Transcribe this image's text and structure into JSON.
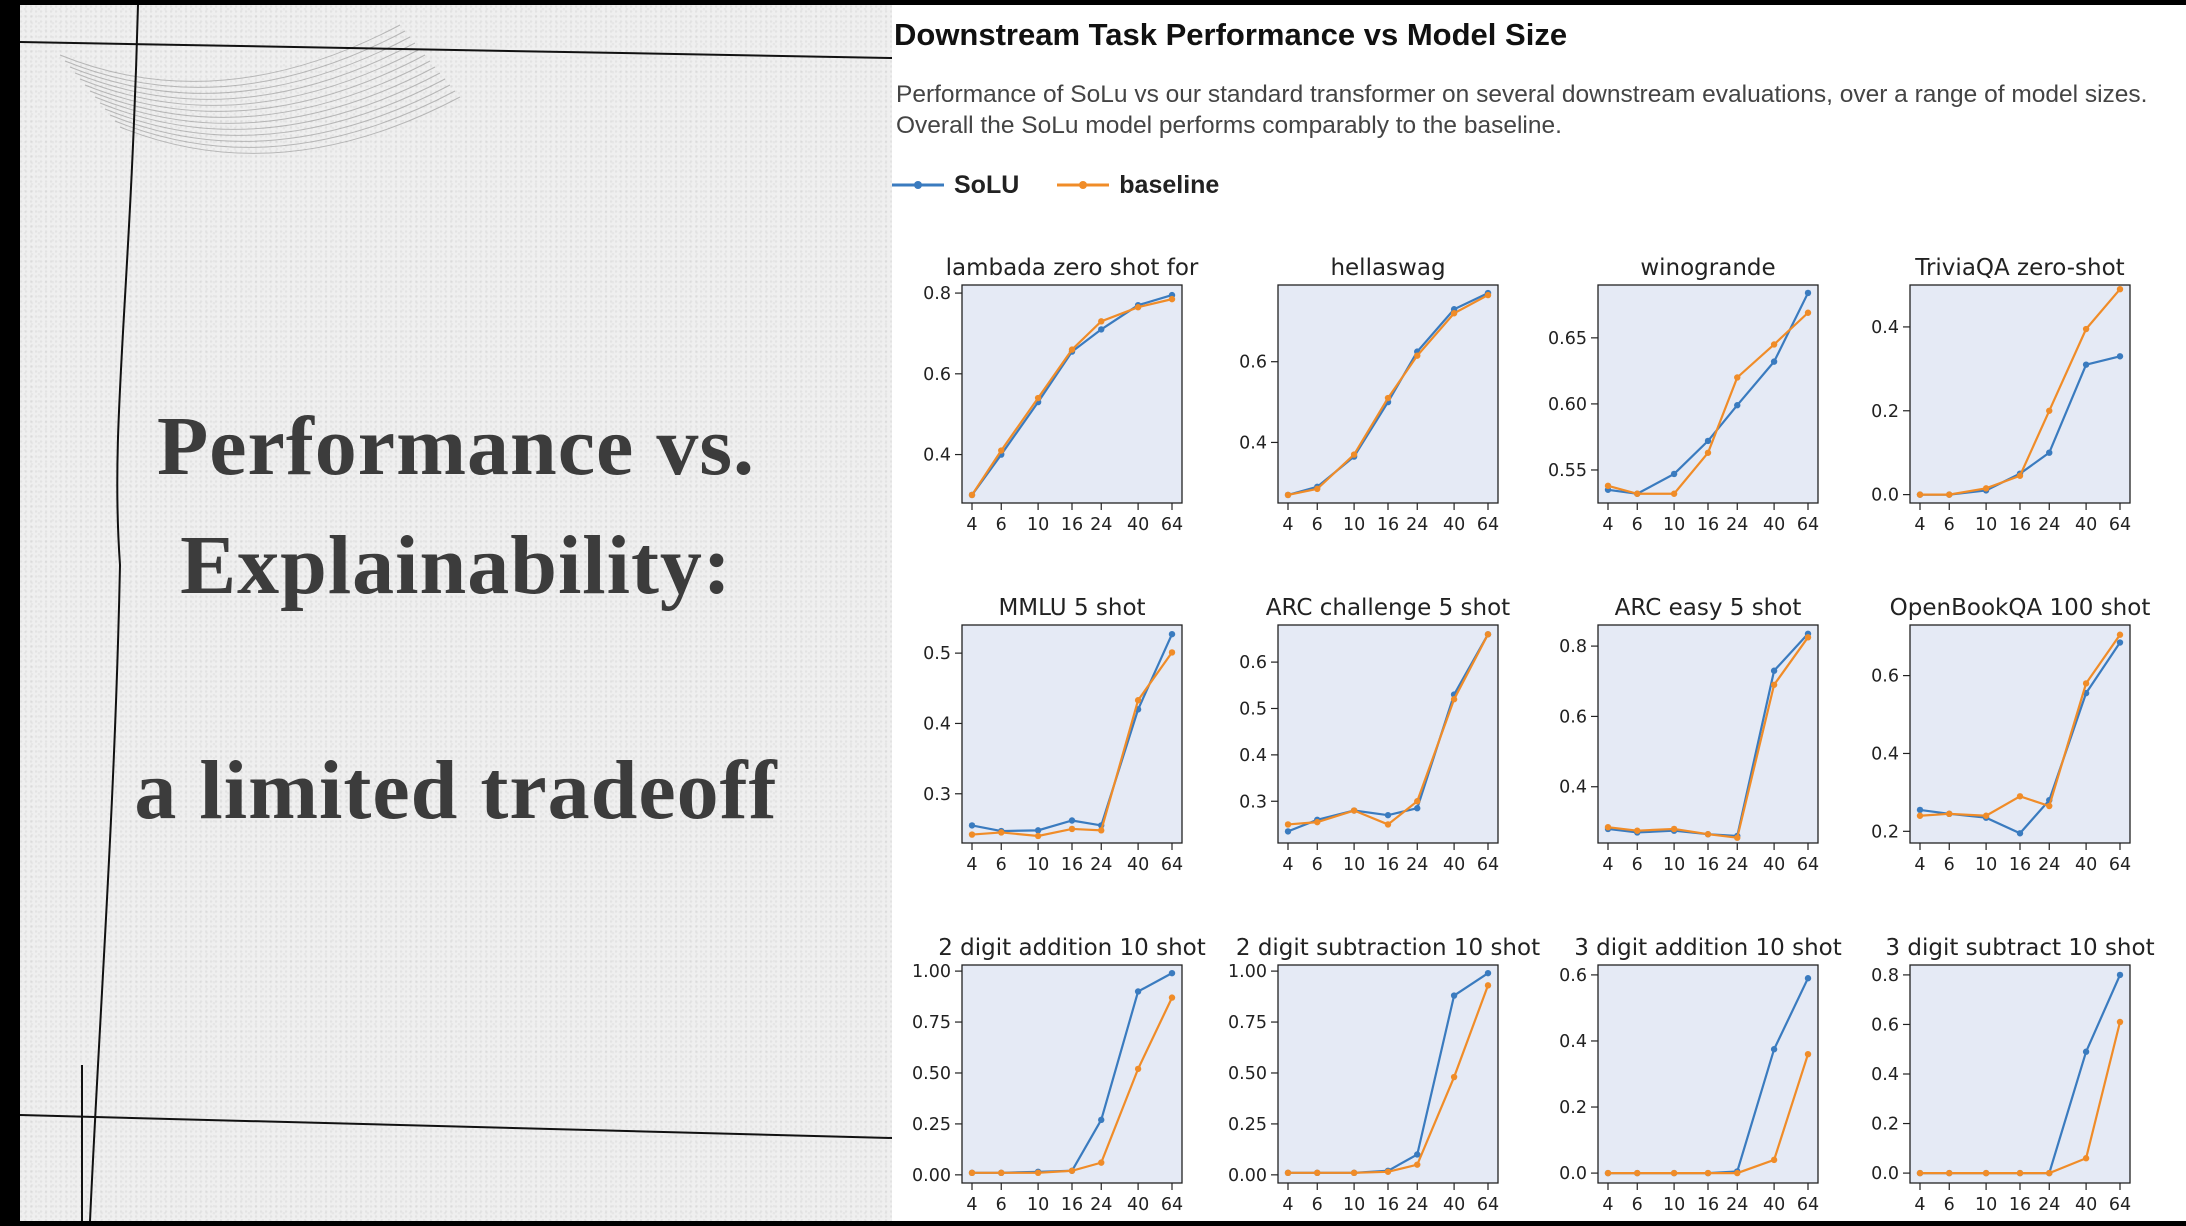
{
  "slide": {
    "title_line1": "Performance vs.",
    "title_line2": "Explainability:",
    "title_line3": "a limited tradeoff"
  },
  "figure": {
    "heading": "Downstream Task Performance vs Model Size",
    "description": "Performance of SoLu vs our standard transformer on several downstream evaluations, over a range of model sizes. Overall the SoLu model performs comparably to the baseline.",
    "legend": [
      {
        "name": "SoLU",
        "color": "#3a7bbf"
      },
      {
        "name": "baseline",
        "color": "#f08c28"
      }
    ]
  },
  "chart_data": [
    {
      "type": "line",
      "title": "lambada zero shot for",
      "x": [
        4,
        6,
        10,
        16,
        24,
        40,
        64
      ],
      "xticks": [
        "4",
        "6",
        "10",
        "16",
        "24",
        "40",
        "64"
      ],
      "ylim": [
        0.28,
        0.82
      ],
      "yticks": [
        0.4,
        0.6,
        0.8
      ],
      "ytick_labels": [
        "0.4",
        "0.6",
        "0.8"
      ],
      "series": [
        {
          "name": "SoLU",
          "values": [
            0.3,
            0.4,
            0.53,
            0.655,
            0.71,
            0.77,
            0.795
          ]
        },
        {
          "name": "baseline",
          "values": [
            0.3,
            0.41,
            0.54,
            0.66,
            0.73,
            0.765,
            0.785
          ]
        }
      ]
    },
    {
      "type": "line",
      "title": "hellaswag",
      "x": [
        4,
        6,
        10,
        16,
        24,
        40,
        64
      ],
      "xticks": [
        "4",
        "6",
        "10",
        "16",
        "24",
        "40",
        "64"
      ],
      "ylim": [
        0.25,
        0.79
      ],
      "yticks": [
        0.4,
        0.6
      ],
      "ytick_labels": [
        "0.4",
        "0.6"
      ],
      "series": [
        {
          "name": "SoLU",
          "values": [
            0.27,
            0.29,
            0.365,
            0.5,
            0.625,
            0.73,
            0.77
          ]
        },
        {
          "name": "baseline",
          "values": [
            0.27,
            0.285,
            0.37,
            0.51,
            0.615,
            0.72,
            0.765
          ]
        }
      ]
    },
    {
      "type": "line",
      "title": "winogrande",
      "x": [
        4,
        6,
        10,
        16,
        24,
        40,
        64
      ],
      "xticks": [
        "4",
        "6",
        "10",
        "16",
        "24",
        "40",
        "64"
      ],
      "ylim": [
        0.525,
        0.69
      ],
      "yticks": [
        0.55,
        0.6,
        0.65
      ],
      "ytick_labels": [
        "0.55",
        "0.60",
        "0.65"
      ],
      "series": [
        {
          "name": "SoLU",
          "values": [
            0.535,
            0.532,
            0.547,
            0.572,
            0.599,
            0.632,
            0.684
          ]
        },
        {
          "name": "baseline",
          "values": [
            0.538,
            0.532,
            0.532,
            0.563,
            0.62,
            0.645,
            0.669
          ]
        }
      ]
    },
    {
      "type": "line",
      "title": "TriviaQA zero-shot",
      "x": [
        4,
        6,
        10,
        16,
        24,
        40,
        64
      ],
      "xticks": [
        "4",
        "6",
        "10",
        "16",
        "24",
        "40",
        "64"
      ],
      "ylim": [
        -0.02,
        0.5
      ],
      "yticks": [
        0.0,
        0.2,
        0.4
      ],
      "ytick_labels": [
        "0.0",
        "0.2",
        "0.4"
      ],
      "series": [
        {
          "name": "SoLU",
          "values": [
            0.0,
            0.0,
            0.01,
            0.05,
            0.1,
            0.31,
            0.33
          ]
        },
        {
          "name": "baseline",
          "values": [
            0.0,
            0.0,
            0.015,
            0.045,
            0.2,
            0.395,
            0.49
          ]
        }
      ]
    },
    {
      "type": "line",
      "title": "MMLU 5 shot",
      "x": [
        4,
        6,
        10,
        16,
        24,
        40,
        64
      ],
      "xticks": [
        "4",
        "6",
        "10",
        "16",
        "24",
        "40",
        "64"
      ],
      "ylim": [
        0.23,
        0.54
      ],
      "yticks": [
        0.3,
        0.4,
        0.5
      ],
      "ytick_labels": [
        "0.3",
        "0.4",
        "0.5"
      ],
      "series": [
        {
          "name": "SoLU",
          "values": [
            0.255,
            0.247,
            0.248,
            0.262,
            0.255,
            0.42,
            0.527
          ]
        },
        {
          "name": "baseline",
          "values": [
            0.242,
            0.245,
            0.24,
            0.25,
            0.248,
            0.433,
            0.501
          ]
        }
      ]
    },
    {
      "type": "line",
      "title": "ARC challenge 5 shot",
      "x": [
        4,
        6,
        10,
        16,
        24,
        40,
        64
      ],
      "xticks": [
        "4",
        "6",
        "10",
        "16",
        "24",
        "40",
        "64"
      ],
      "ylim": [
        0.21,
        0.68
      ],
      "yticks": [
        0.3,
        0.4,
        0.5,
        0.6
      ],
      "ytick_labels": [
        "0.3",
        "0.4",
        "0.5",
        "0.6"
      ],
      "series": [
        {
          "name": "SoLU",
          "values": [
            0.235,
            0.26,
            0.28,
            0.27,
            0.285,
            0.53,
            0.66
          ]
        },
        {
          "name": "baseline",
          "values": [
            0.25,
            0.255,
            0.28,
            0.25,
            0.3,
            0.52,
            0.66
          ]
        }
      ]
    },
    {
      "type": "line",
      "title": "ARC easy 5 shot",
      "x": [
        4,
        6,
        10,
        16,
        24,
        40,
        64
      ],
      "xticks": [
        "4",
        "6",
        "10",
        "16",
        "24",
        "40",
        "64"
      ],
      "ylim": [
        0.24,
        0.86
      ],
      "yticks": [
        0.4,
        0.6,
        0.8
      ],
      "ytick_labels": [
        "0.4",
        "0.6",
        "0.8"
      ],
      "series": [
        {
          "name": "SoLU",
          "values": [
            0.28,
            0.27,
            0.275,
            0.265,
            0.26,
            0.73,
            0.835
          ]
        },
        {
          "name": "baseline",
          "values": [
            0.285,
            0.275,
            0.28,
            0.265,
            0.255,
            0.69,
            0.825
          ]
        }
      ]
    },
    {
      "type": "line",
      "title": "OpenBookQA 100 shot",
      "x": [
        4,
        6,
        10,
        16,
        24,
        40,
        64
      ],
      "xticks": [
        "4",
        "6",
        "10",
        "16",
        "24",
        "40",
        "64"
      ],
      "ylim": [
        0.17,
        0.73
      ],
      "yticks": [
        0.2,
        0.4,
        0.6
      ],
      "ytick_labels": [
        "0.2",
        "0.4",
        "0.6"
      ],
      "series": [
        {
          "name": "SoLU",
          "values": [
            0.255,
            0.245,
            0.235,
            0.195,
            0.28,
            0.555,
            0.685
          ]
        },
        {
          "name": "baseline",
          "values": [
            0.24,
            0.245,
            0.24,
            0.29,
            0.265,
            0.58,
            0.705
          ]
        }
      ]
    },
    {
      "type": "line",
      "title": "2 digit addition 10 shot",
      "x": [
        4,
        6,
        10,
        16,
        24,
        40,
        64
      ],
      "xticks": [
        "4",
        "6",
        "10",
        "16",
        "24",
        "40",
        "64"
      ],
      "ylim": [
        -0.04,
        1.03
      ],
      "yticks": [
        0.0,
        0.25,
        0.5,
        0.75,
        1.0
      ],
      "ytick_labels": [
        "0.00",
        "0.25",
        "0.50",
        "0.75",
        "1.00"
      ],
      "series": [
        {
          "name": "SoLU",
          "values": [
            0.01,
            0.01,
            0.015,
            0.02,
            0.27,
            0.9,
            0.99
          ]
        },
        {
          "name": "baseline",
          "values": [
            0.01,
            0.01,
            0.01,
            0.02,
            0.06,
            0.52,
            0.87
          ]
        }
      ]
    },
    {
      "type": "line",
      "title": "2 digit subtraction 10 shot",
      "x": [
        4,
        6,
        10,
        16,
        24,
        40,
        64
      ],
      "xticks": [
        "4",
        "6",
        "10",
        "16",
        "24",
        "40",
        "64"
      ],
      "ylim": [
        -0.04,
        1.03
      ],
      "yticks": [
        0.0,
        0.25,
        0.5,
        0.75,
        1.0
      ],
      "ytick_labels": [
        "0.00",
        "0.25",
        "0.50",
        "0.75",
        "1.00"
      ],
      "series": [
        {
          "name": "SoLU",
          "values": [
            0.01,
            0.01,
            0.01,
            0.02,
            0.1,
            0.88,
            0.99
          ]
        },
        {
          "name": "baseline",
          "values": [
            0.01,
            0.01,
            0.01,
            0.015,
            0.05,
            0.48,
            0.93
          ]
        }
      ]
    },
    {
      "type": "line",
      "title": "3 digit addition 10 shot",
      "x": [
        4,
        6,
        10,
        16,
        24,
        40,
        64
      ],
      "xticks": [
        "4",
        "6",
        "10",
        "16",
        "24",
        "40",
        "64"
      ],
      "ylim": [
        -0.03,
        0.63
      ],
      "yticks": [
        0.0,
        0.2,
        0.4,
        0.6
      ],
      "ytick_labels": [
        "0.0",
        "0.2",
        "0.4",
        "0.6"
      ],
      "series": [
        {
          "name": "SoLU",
          "values": [
            0.0,
            0.0,
            0.0,
            0.0,
            0.005,
            0.375,
            0.59
          ]
        },
        {
          "name": "baseline",
          "values": [
            0.0,
            0.0,
            0.0,
            0.0,
            0.0,
            0.04,
            0.36
          ]
        }
      ]
    },
    {
      "type": "line",
      "title": "3 digit subtract 10 shot",
      "x": [
        4,
        6,
        10,
        16,
        24,
        40,
        64
      ],
      "xticks": [
        "4",
        "6",
        "10",
        "16",
        "24",
        "40",
        "64"
      ],
      "ylim": [
        -0.04,
        0.84
      ],
      "yticks": [
        0.0,
        0.2,
        0.4,
        0.6,
        0.8
      ],
      "ytick_labels": [
        "0.0",
        "0.2",
        "0.4",
        "0.6",
        "0.8"
      ],
      "series": [
        {
          "name": "SoLU",
          "values": [
            0.0,
            0.0,
            0.0,
            0.0,
            0.0,
            0.49,
            0.8
          ]
        },
        {
          "name": "baseline",
          "values": [
            0.0,
            0.0,
            0.0,
            0.0,
            0.0,
            0.06,
            0.61
          ]
        }
      ]
    }
  ]
}
